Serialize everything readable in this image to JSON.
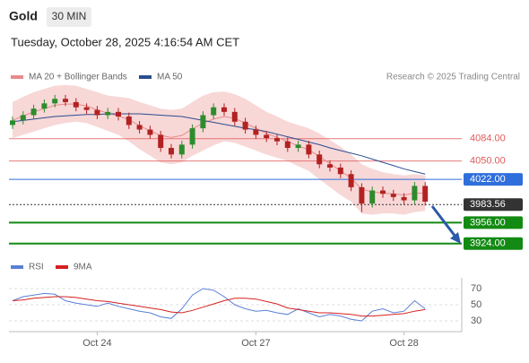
{
  "header": {
    "symbol": "Gold",
    "timeframe": "30 MIN",
    "datetime": "Tuesday, October 28, 2025 4:16:54 AM CET",
    "source": "Research © 2025 Trading Central"
  },
  "chart_data": [
    {
      "type": "candlestick",
      "categories": [
        null,
        null,
        null,
        null,
        null,
        null,
        null,
        null,
        "Oct 24",
        null,
        null,
        null,
        null,
        null,
        null,
        null,
        null,
        null,
        null,
        null,
        null,
        null,
        null,
        "Oct 27",
        null,
        null,
        null,
        null,
        null,
        null,
        null,
        null,
        null,
        null,
        null,
        null,
        null,
        "Oct 28",
        null,
        null
      ],
      "open": [
        4105,
        4112,
        4120,
        4130,
        4138,
        4145,
        4140,
        4132,
        4128,
        4120,
        4125,
        4118,
        4105,
        4098,
        4090,
        4070,
        4060,
        4075,
        4100,
        4120,
        4132,
        4125,
        4110,
        4098,
        4090,
        4085,
        4080,
        4070,
        4075,
        4060,
        4045,
        4040,
        4030,
        4010,
        3985,
        4005,
        4000,
        3995,
        3990,
        4012
      ],
      "high": [
        4118,
        4126,
        4136,
        4144,
        4151,
        4151,
        4146,
        4138,
        4134,
        4131,
        4131,
        4124,
        4111,
        4104,
        4096,
        4076,
        4081,
        4106,
        4126,
        4138,
        4138,
        4131,
        4116,
        4104,
        4096,
        4091,
        4086,
        4081,
        4081,
        4066,
        4051,
        4046,
        4036,
        4016,
        4011,
        4011,
        4006,
        4001,
        4018,
        4018
      ],
      "low": [
        4099,
        4106,
        4114,
        4124,
        4132,
        4134,
        4126,
        4122,
        4114,
        4114,
        4112,
        4099,
        4092,
        4084,
        4064,
        4054,
        4054,
        4069,
        4094,
        4114,
        4119,
        4104,
        4092,
        4084,
        4079,
        4074,
        4064,
        4064,
        4054,
        4039,
        4034,
        4024,
        4004,
        3972,
        3979,
        3994,
        3989,
        3984,
        3984,
        3982
      ],
      "close": [
        4112,
        4120,
        4130,
        4138,
        4145,
        4140,
        4132,
        4128,
        4120,
        4125,
        4118,
        4105,
        4098,
        4090,
        4070,
        4060,
        4075,
        4100,
        4120,
        4132,
        4125,
        4110,
        4098,
        4090,
        4085,
        4080,
        4070,
        4075,
        4060,
        4045,
        4040,
        4030,
        4010,
        3985,
        4005,
        4000,
        3995,
        3990,
        4012,
        3988
      ],
      "up_color": "#2e8b2e",
      "down_color": "#b22222",
      "series": [
        {
          "name": "MA 20 + Bollinger Bands",
          "color": "#e88a8a",
          "band_color": "#f5c9c9",
          "values": [
            4112,
            4119,
            4125,
            4130,
            4135,
            4137,
            4137,
            4134,
            4128,
            4123,
            4119,
            4113,
            4104,
            4096,
            4089,
            4086,
            4089,
            4099,
            4108,
            4114,
            4118,
            4115,
            4108,
            4100,
            4092,
            4086,
            4080,
            4073,
            4067,
            4057,
            4046,
            4035,
            4024,
            4007,
            4003,
            4001,
            4000,
            3998,
            4001,
            4001
          ],
          "upper": [
            4140,
            4148,
            4155,
            4160,
            4165,
            4166,
            4165,
            4160,
            4155,
            4150,
            4148,
            4146,
            4140,
            4135,
            4130,
            4128,
            4130,
            4140,
            4150,
            4155,
            4156,
            4152,
            4145,
            4135,
            4125,
            4118,
            4110,
            4105,
            4100,
            4092,
            4082,
            4072,
            4060,
            4045,
            4038,
            4033,
            4030,
            4028,
            4030,
            4028
          ],
          "lower": [
            4085,
            4090,
            4095,
            4100,
            4105,
            4108,
            4110,
            4108,
            4102,
            4096,
            4090,
            4080,
            4068,
            4058,
            4048,
            4045,
            4048,
            4058,
            4066,
            4074,
            4080,
            4078,
            4072,
            4066,
            4060,
            4055,
            4050,
            4042,
            4035,
            4022,
            4010,
            3998,
            3988,
            3970,
            3968,
            3970,
            3970,
            3968,
            3972,
            3974
          ]
        },
        {
          "name": "MA 50",
          "color": "#2a4d8f",
          "values": [
            4110,
            4112,
            4114,
            4116,
            4118,
            4119,
            4120,
            4121,
            4121,
            4122,
            4122,
            4122,
            4122,
            4121,
            4120,
            4119,
            4118,
            4115,
            4112,
            4109,
            4106,
            4103,
            4100,
            4098,
            4095,
            4091,
            4087,
            4083,
            4079,
            4075,
            4070,
            4066,
            4062,
            4058,
            4053,
            4048,
            4043,
            4038,
            4034,
            4030
          ]
        }
      ],
      "levels": [
        {
          "value": 4084,
          "label": "4084.00",
          "color": "#e05a5a",
          "style": "text"
        },
        {
          "value": 4050,
          "label": "4050.00",
          "color": "#e05a5a",
          "style": "text"
        },
        {
          "value": 4022,
          "label": "4022.00",
          "color": "#2f6fdc",
          "style": "box"
        },
        {
          "value": 3983.56,
          "label": "3983.56",
          "color": "#333333",
          "style": "dotted"
        },
        {
          "value": 3956,
          "label": "3956.00",
          "color": "#138a13",
          "style": "box"
        },
        {
          "value": 3924,
          "label": "3924.00",
          "color": "#138a13",
          "style": "box"
        }
      ],
      "ylim": [
        3899,
        4159
      ]
    },
    {
      "type": "line",
      "series": [
        {
          "name": "RSI",
          "color": "#5a7fd6",
          "values": [
            55,
            60,
            62,
            64,
            63,
            55,
            52,
            50,
            48,
            52,
            48,
            45,
            42,
            40,
            35,
            33,
            45,
            62,
            70,
            68,
            60,
            50,
            45,
            42,
            43,
            40,
            38,
            45,
            40,
            35,
            38,
            36,
            32,
            30,
            42,
            45,
            40,
            42,
            55,
            45
          ]
        },
        {
          "name": "9MA",
          "color": "#d62020",
          "values": [
            55,
            56,
            58,
            59,
            60,
            60,
            59,
            57,
            55,
            54,
            52,
            50,
            48,
            46,
            44,
            41,
            40,
            43,
            47,
            51,
            55,
            58,
            58,
            57,
            54,
            51,
            46,
            44,
            42,
            40,
            40,
            39,
            38,
            36,
            36,
            37,
            38,
            39,
            42,
            44
          ]
        }
      ],
      "ylim": [
        15,
        85
      ],
      "yticks": [
        30,
        50,
        70
      ]
    }
  ]
}
